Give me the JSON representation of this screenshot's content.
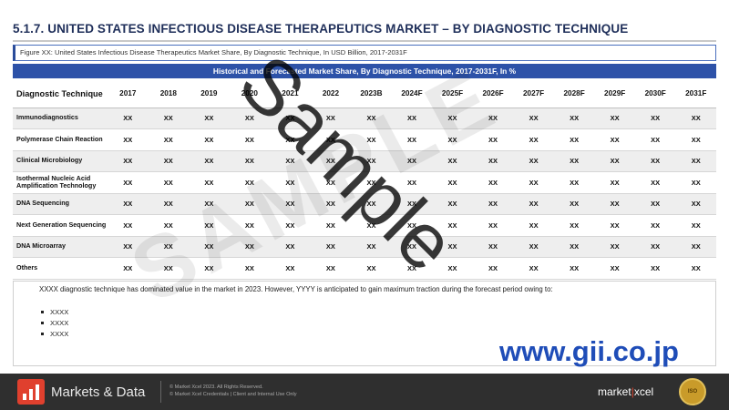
{
  "header": {
    "title_main": "5.1.7. UNITED STATES INFECTIOUS DISEASE THERAPEUTICS MARKET",
    "title_suffix": " – BY DIAGNOSTIC TECHNIQUE"
  },
  "figure": {
    "caption": "Figure XX: United States Infectious Disease Therapeutics Market Share, By Diagnostic Technique, In USD Billion, 2017-2031F"
  },
  "table": {
    "band_title": "Historical and Forecasted Market Share, By Diagnostic Technique, 2017-2031F, In %",
    "header_first": "Diagnostic Technique",
    "years": [
      "2017",
      "2018",
      "2019",
      "2020",
      "2021",
      "2022",
      "2023B",
      "2024F",
      "2025F",
      "2026F",
      "2027F",
      "2028F",
      "2029F",
      "2030F",
      "2031F"
    ],
    "rows": [
      {
        "label": "Immunodiagnostics",
        "values": [
          "XX",
          "XX",
          "XX",
          "XX",
          "XX",
          "XX",
          "XX",
          "XX",
          "XX",
          "XX",
          "XX",
          "XX",
          "XX",
          "XX",
          "XX"
        ]
      },
      {
        "label": "Polymerase Chain Reaction",
        "values": [
          "XX",
          "XX",
          "XX",
          "XX",
          "XX",
          "XX",
          "XX",
          "XX",
          "XX",
          "XX",
          "XX",
          "XX",
          "XX",
          "XX",
          "XX"
        ]
      },
      {
        "label": "Clinical Microbiology",
        "values": [
          "XX",
          "XX",
          "XX",
          "XX",
          "XX",
          "XX",
          "XX",
          "XX",
          "XX",
          "XX",
          "XX",
          "XX",
          "XX",
          "XX",
          "XX"
        ]
      },
      {
        "label": "Isothermal Nucleic Acid Amplification Technology",
        "values": [
          "XX",
          "XX",
          "XX",
          "XX",
          "XX",
          "XX",
          "XX",
          "XX",
          "XX",
          "XX",
          "XX",
          "XX",
          "XX",
          "XX",
          "XX"
        ]
      },
      {
        "label": "DNA Sequencing",
        "values": [
          "XX",
          "XX",
          "XX",
          "XX",
          "XX",
          "XX",
          "XX",
          "XX",
          "XX",
          "XX",
          "XX",
          "XX",
          "XX",
          "XX",
          "XX"
        ]
      },
      {
        "label": "Next Generation Sequencing",
        "values": [
          "XX",
          "XX",
          "XX",
          "XX",
          "XX",
          "XX",
          "XX",
          "XX",
          "XX",
          "XX",
          "XX",
          "XX",
          "XX",
          "XX",
          "XX"
        ]
      },
      {
        "label": "DNA Microarray",
        "values": [
          "XX",
          "XX",
          "XX",
          "XX",
          "XX",
          "XX",
          "XX",
          "XX",
          "XX",
          "XX",
          "XX",
          "XX",
          "XX",
          "XX",
          "XX"
        ]
      },
      {
        "label": "Others",
        "values": [
          "XX",
          "XX",
          "XX",
          "XX",
          "XX",
          "XX",
          "XX",
          "XX",
          "XX",
          "XX",
          "XX",
          "XX",
          "XX",
          "XX",
          "XX"
        ]
      }
    ]
  },
  "analysis": {
    "text": "XXXX diagnostic technique has dominated value in the market in 2023. However, YYYY is anticipated to gain maximum traction during the forecast period owing to:",
    "bullets": [
      "XXXX",
      "XXXX",
      "XXXX"
    ]
  },
  "watermarks": {
    "diagonal": "SAMPLE",
    "sample": "Sample",
    "site": "www.gii.co.jp"
  },
  "footer": {
    "brand": "Markets & Data",
    "legal_1": "© Market Xcel 2023. All Rights Reserved.",
    "legal_2": "© Market Xcel Credentials | Client and Internal Use Only",
    "mx_left": "market",
    "mx_bar": "|",
    "mx_right": "xcel"
  },
  "colors": {
    "title": "#1f2f5a",
    "table_band": "#2d52a8",
    "site_text": "#1f4db8",
    "footer_bg": "#2f2f2f",
    "logo_red": "#e0402e"
  }
}
